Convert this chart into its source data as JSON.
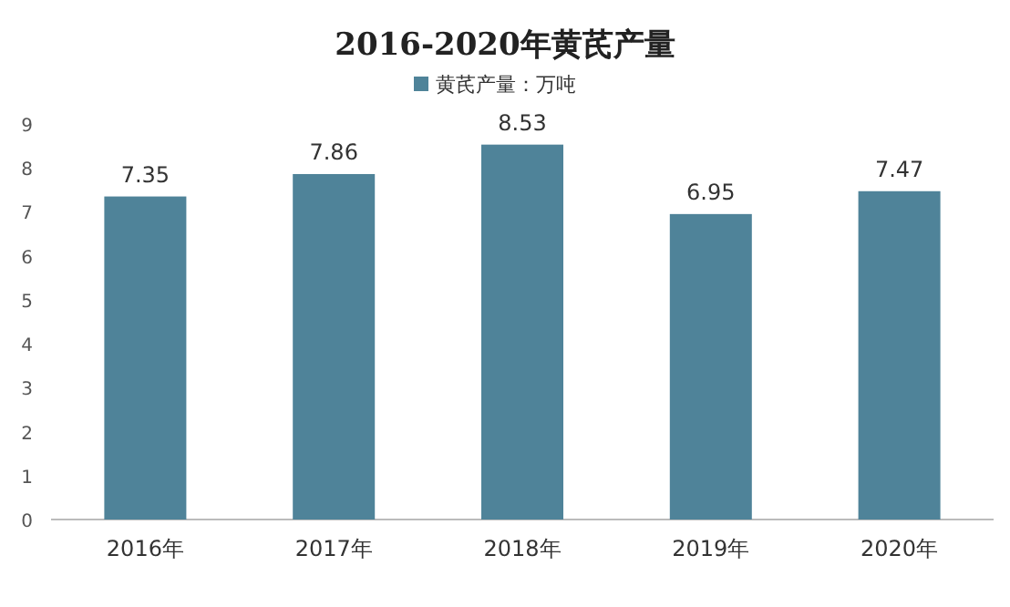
{
  "chart_data": {
    "type": "bar",
    "title": "2016-2020年黄芪产量",
    "categories": [
      "2016年",
      "2017年",
      "2018年",
      "2019年",
      "2020年"
    ],
    "series": [
      {
        "name": "黄芪产量：万吨",
        "color": "#4f8399",
        "values": [
          7.35,
          7.86,
          8.53,
          6.95,
          7.47
        ]
      }
    ],
    "ylim": [
      0,
      9
    ],
    "yticks": [
      0,
      1,
      2,
      3,
      4,
      5,
      6,
      7,
      8,
      9
    ],
    "data_labels": true,
    "legend": "top",
    "grid": false
  }
}
